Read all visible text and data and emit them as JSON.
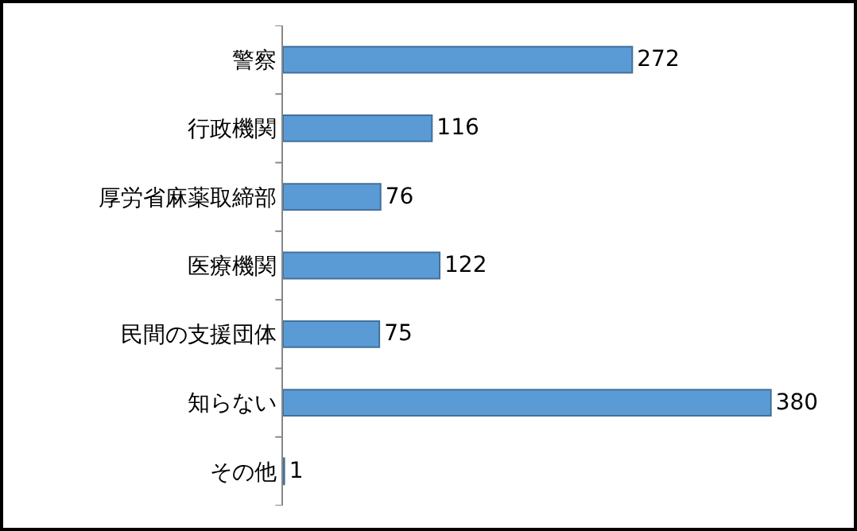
{
  "chart_data": {
    "type": "bar",
    "orientation": "horizontal",
    "categories": [
      "警察",
      "行政機関",
      "厚労省麻薬取締部",
      "医療機関",
      "民間の支援団体",
      "知らない",
      "その他"
    ],
    "values": [
      272,
      116,
      76,
      122,
      75,
      380,
      1
    ],
    "color": "#5b9bd5",
    "data_labels": true
  }
}
